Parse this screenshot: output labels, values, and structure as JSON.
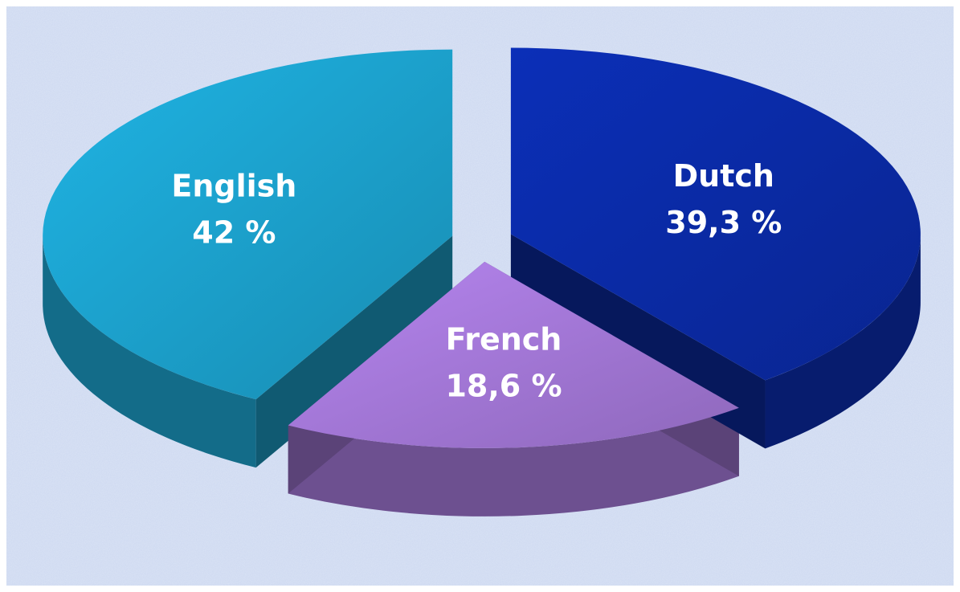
{
  "chart_data": {
    "type": "pie",
    "categories": [
      "English",
      "French",
      "Dutch"
    ],
    "values": [
      42,
      18.6,
      39.3
    ],
    "value_labels": [
      "42 %",
      "18,6 %",
      "39,3 %"
    ],
    "colors": [
      "#1fb4e4",
      "#b685f0",
      "#0b2fb8"
    ]
  }
}
